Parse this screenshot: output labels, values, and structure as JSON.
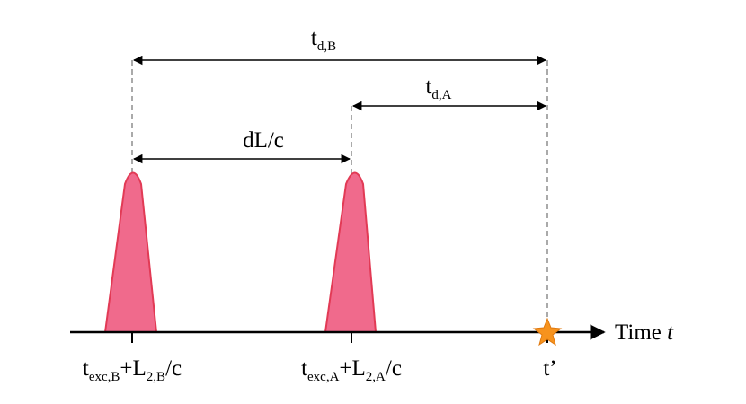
{
  "labels": {
    "delay_b": [
      {
        "main": "t",
        "sub": "d,B"
      }
    ],
    "delay_a": [
      {
        "main": "t",
        "sub": "d,A"
      }
    ],
    "path_difference": [
      {
        "main": "dL/c"
      }
    ],
    "axis": [
      {
        "main": "Time "
      },
      {
        "italic": "t"
      }
    ],
    "arrival_b": [
      {
        "main": "t",
        "sub": "exc,B"
      },
      {
        "main": "+L",
        "sub": "2,B"
      },
      {
        "main": "/c"
      }
    ],
    "arrival_a": [
      {
        "main": "t",
        "sub": "exc,A"
      },
      {
        "main": "+L",
        "sub": "2,A"
      },
      {
        "main": "/c"
      }
    ],
    "observation": [
      {
        "main": "t’"
      }
    ]
  }
}
